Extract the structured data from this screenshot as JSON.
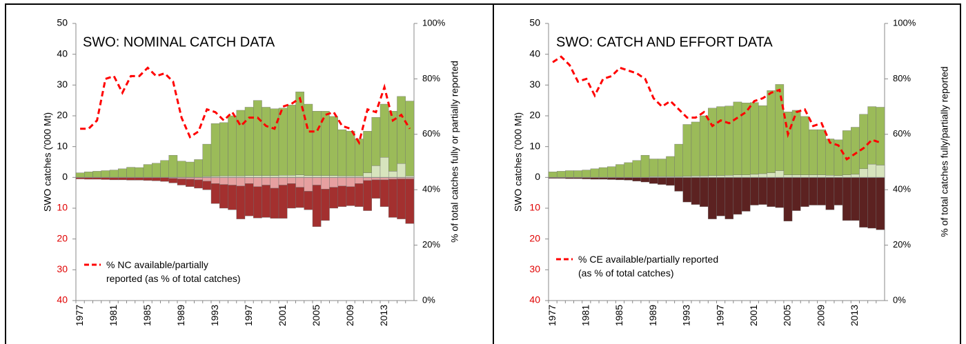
{
  "chart_data": [
    {
      "type": "bar",
      "title": "SWO: NOMINAL CATCH DATA",
      "y_label": "SWO catches ('000 Mt)",
      "y2_label": "% of total catches fully or partially reported",
      "categories": [
        "1977",
        null,
        null,
        null,
        "1981",
        null,
        null,
        null,
        "1985",
        null,
        null,
        null,
        "1989",
        null,
        null,
        null,
        "1993",
        null,
        null,
        null,
        "1997",
        null,
        null,
        null,
        "2001",
        null,
        null,
        null,
        "2005",
        null,
        null,
        null,
        "2009",
        null,
        null,
        null,
        "2013",
        null,
        null,
        null
      ],
      "ylim": [
        -40,
        50
      ],
      "yticks": [
        {
          "value": -40,
          "label": "40"
        },
        {
          "value": -30,
          "label": "30"
        },
        {
          "value": -20,
          "label": "20"
        },
        {
          "value": -10,
          "label": "10"
        },
        0,
        10,
        20,
        30,
        40,
        50
      ],
      "y2lim": [
        0,
        100
      ],
      "y2ticks": [
        {
          "value": 0,
          "label": "0%"
        },
        {
          "value": 20,
          "label": "20%"
        },
        {
          "value": 40,
          "label": "40%"
        },
        {
          "value": 60,
          "label": "60%"
        },
        {
          "value": 80,
          "label": "80%"
        },
        {
          "value": 100,
          "label": "100%"
        }
      ],
      "series": [
        {
          "color": "#d7e4bd",
          "values": [
            0,
            0,
            0,
            0,
            0,
            0,
            0,
            0,
            0,
            0,
            0,
            0,
            0,
            0,
            0,
            0.3,
            0.4,
            0.5,
            0.5,
            0.5,
            0.6,
            0.6,
            0.6,
            0.6,
            0.7,
            0.7,
            0.8,
            0.6,
            0.6,
            0.6,
            0.6,
            0.5,
            0.5,
            0.5,
            1.5,
            3.8,
            6.5,
            2.0,
            4.5,
            0.5
          ]
        },
        {
          "color": "#9bbb59",
          "values": [
            1.5,
            1.8,
            2.0,
            2.2,
            2.4,
            2.8,
            3.3,
            3.2,
            4.2,
            4.6,
            5.5,
            7.2,
            5.3,
            5.0,
            5.8,
            10.5,
            17.1,
            17.3,
            19.5,
            21.3,
            22.2,
            24.4,
            22.2,
            21.7,
            21.8,
            22.8,
            27.0,
            23.2,
            20.9,
            20.9,
            19.2,
            15.0,
            14.5,
            12.0,
            13.5,
            15.7,
            17.3,
            19.5,
            21.8,
            24.3
          ]
        },
        {
          "color": "#e6a0a0",
          "values": [
            0,
            0,
            0,
            0,
            0,
            0,
            0,
            0,
            0,
            0,
            0,
            -0.3,
            -0.5,
            -0.6,
            -0.8,
            -1.2,
            -2.0,
            -2.3,
            -2.5,
            -2.8,
            -2.0,
            -3.0,
            -2.5,
            -3.5,
            -2.5,
            -2.0,
            -3.2,
            -4.5,
            -2.5,
            -3.8,
            -3.2,
            -2.8,
            -3.0,
            -2.0,
            -1.0,
            -0.8,
            -0.8,
            -0.6,
            -0.5,
            -0.5
          ]
        },
        {
          "color": "#a3302f",
          "values": [
            -0.5,
            -0.6,
            -0.6,
            -0.7,
            -0.8,
            -0.8,
            -0.9,
            -0.9,
            -1.0,
            -1.1,
            -1.3,
            -1.5,
            -2.0,
            -2.4,
            -2.7,
            -2.8,
            -6.5,
            -7.7,
            -8.0,
            -10.7,
            -10.5,
            -10.2,
            -10.5,
            -9.8,
            -10.8,
            -8.0,
            -6.6,
            -6.0,
            -13.5,
            -10.2,
            -6.8,
            -6.7,
            -6.2,
            -7.5,
            -9.8,
            -6.0,
            -8.7,
            -12.4,
            -13.0,
            -14.5
          ]
        },
        {
          "type": "line",
          "axis": "y2",
          "name": "% NC available/partially\nreported (as % of total catches)",
          "color": "#ff0000",
          "values": [
            62,
            62,
            65,
            80,
            81,
            75,
            81,
            81,
            84,
            81,
            82,
            79,
            66,
            59,
            61,
            69,
            68,
            65,
            68,
            63,
            66,
            66,
            63,
            62,
            70,
            71,
            73,
            61,
            61,
            67,
            68,
            63,
            62,
            57,
            69,
            68,
            77,
            65,
            67,
            62
          ]
        }
      ]
    },
    {
      "type": "bar",
      "title": "SWO: CATCH AND EFFORT DATA",
      "y_label": "SWO catches ('000 Mt)",
      "y2_label": "% of total catches fully/partially reported",
      "categories": [
        "1977",
        null,
        null,
        null,
        "1981",
        null,
        null,
        null,
        "1985",
        null,
        null,
        null,
        "1989",
        null,
        null,
        null,
        "1993",
        null,
        null,
        null,
        "1997",
        null,
        null,
        null,
        "2001",
        null,
        null,
        null,
        "2005",
        null,
        null,
        null,
        "2009",
        null,
        null,
        null,
        "2013",
        null,
        null,
        null
      ],
      "ylim": [
        -40,
        50
      ],
      "yticks": [
        {
          "value": -40,
          "label": "40"
        },
        {
          "value": -30,
          "label": "30"
        },
        {
          "value": -20,
          "label": "20"
        },
        {
          "value": -10,
          "label": "10"
        },
        0,
        10,
        20,
        30,
        40,
        50
      ],
      "y2lim": [
        0,
        100
      ],
      "y2ticks": [
        {
          "value": 0,
          "label": "0%"
        },
        {
          "value": 20,
          "label": "20%"
        },
        {
          "value": 40,
          "label": "40%"
        },
        {
          "value": 60,
          "label": "60%"
        },
        {
          "value": 80,
          "label": "80%"
        },
        {
          "value": 100,
          "label": "100%"
        }
      ],
      "series": [
        {
          "color": "#d7e4bd",
          "values": [
            0,
            0,
            0,
            0,
            0,
            0,
            0,
            0,
            0,
            0,
            0,
            0,
            0.3,
            0.3,
            0.3,
            0.3,
            0.4,
            0.5,
            0.5,
            0.6,
            0.6,
            0.7,
            0.8,
            0.8,
            1.0,
            1.2,
            1.5,
            2.2,
            0.8,
            0.8,
            0.8,
            0.8,
            0.8,
            0.7,
            0.6,
            0.8,
            1.0,
            2.8,
            4.3,
            4.0
          ]
        },
        {
          "color": "#9bbb59",
          "values": [
            1.8,
            2.0,
            2.2,
            2.2,
            2.4,
            2.8,
            3.2,
            3.5,
            4.2,
            4.8,
            5.5,
            7.2,
            5.7,
            5.7,
            6.5,
            10.5,
            16.8,
            17.5,
            19.5,
            21.9,
            22.4,
            22.5,
            23.7,
            23.4,
            23.3,
            22.1,
            26.7,
            28.0,
            20.5,
            21.0,
            19.0,
            14.7,
            14.7,
            11.8,
            11.6,
            14.4,
            15.3,
            17.7,
            18.7,
            18.8
          ]
        },
        {
          "color": "#5c2221",
          "values": [
            -0.3,
            -0.3,
            -0.4,
            -0.4,
            -0.5,
            -0.6,
            -0.6,
            -0.7,
            -0.8,
            -0.9,
            -1.2,
            -1.5,
            -2.0,
            -2.3,
            -2.6,
            -4.5,
            -8.0,
            -8.8,
            -9.5,
            -13.5,
            -12.5,
            -13.5,
            -12.0,
            -11.0,
            -9.0,
            -8.8,
            -9.5,
            -9.8,
            -14.2,
            -10.8,
            -9.5,
            -9.0,
            -9.0,
            -10.5,
            -9.0,
            -14.0,
            -14.0,
            -16.2,
            -16.5,
            -17.0
          ]
        },
        {
          "type": "line",
          "axis": "y2",
          "name": "% CE available/partially reported\n(as % of total catches)",
          "color": "#ff0000",
          "values": [
            86,
            88,
            85,
            79,
            80,
            74,
            80,
            81,
            84,
            83,
            82,
            80,
            73,
            70,
            72,
            69,
            66,
            66,
            68,
            63,
            65,
            64,
            66,
            68,
            72,
            73,
            75,
            76,
            60,
            68,
            69,
            63,
            64,
            57,
            56,
            51,
            53,
            55,
            58,
            57
          ]
        }
      ]
    }
  ]
}
